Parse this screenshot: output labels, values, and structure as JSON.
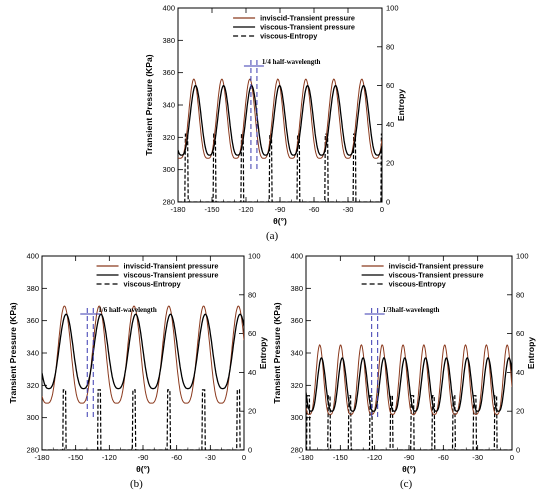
{
  "chart_data": [
    {
      "type": "line",
      "panel_label": "(a)",
      "xlabel": "θ(°)",
      "ylabel_left": "Transient Pressure (KPa)",
      "ylabel_right": "Entropy",
      "xlim": [
        -180,
        0
      ],
      "ylim_left": [
        280,
        400
      ],
      "ylim_right": [
        0,
        100
      ],
      "xticks": [
        -180,
        -150,
        -120,
        -90,
        -60,
        -30,
        0
      ],
      "xticklabels": [
        "-180",
        "-150",
        "-120",
        "-90",
        "-60",
        "-30",
        "0"
      ],
      "yticks_left": [
        280,
        300,
        320,
        340,
        360,
        380,
        400
      ],
      "yticklabels_left": [
        "280",
        "300",
        "320",
        "340",
        "360",
        "380",
        "400"
      ],
      "yticks_right": [
        0,
        20,
        40,
        60,
        80,
        100
      ],
      "yticklabels_right": [
        "0",
        "20",
        "40",
        "60",
        "80",
        "100"
      ],
      "legend": [
        "inviscid-Transient pressure",
        "viscous-Transient pressure",
        "viscous-Entropy"
      ],
      "annotation": "1/4 half-wavelength",
      "annotation_x": -113,
      "series": [
        {
          "name": "inviscid-Transient pressure",
          "color": "#8b3a1e",
          "style": "solid",
          "x": [],
          "y": []
        },
        {
          "name": "viscous-Transient pressure",
          "color": "#000000",
          "style": "solid",
          "x": [],
          "y": []
        },
        {
          "name": "viscous-Entropy",
          "color": "#000000",
          "style": "dashed",
          "x": [],
          "y": []
        }
      ]
    },
    {
      "type": "line",
      "panel_label": "(b)",
      "xlabel": "θ(°)",
      "ylabel_left": "Transient Pressure (KPa)",
      "ylabel_right": "Entropy",
      "xlim": [
        -180,
        0
      ],
      "ylim_left": [
        280,
        400
      ],
      "ylim_right": [
        0,
        100
      ],
      "xticks": [
        -180,
        -150,
        -120,
        -90,
        -60,
        -30,
        0
      ],
      "xticklabels": [
        "-180",
        "-150",
        "-120",
        "-90",
        "-60",
        "-30",
        "0"
      ],
      "yticks_left": [
        280,
        300,
        320,
        340,
        360,
        380,
        400
      ],
      "yticklabels_left": [
        "280",
        "300",
        "320",
        "340",
        "360",
        "380",
        "400"
      ],
      "yticks_right": [
        0,
        20,
        40,
        60,
        80,
        100
      ],
      "yticklabels_right": [
        "0",
        "20",
        "40",
        "60",
        "80",
        "100"
      ],
      "legend": [
        "inviscid-Transient pressure",
        "viscous-Transient pressure",
        "viscous-Entropy"
      ],
      "annotation": "1/6 half-wavelength",
      "annotation_x": -137,
      "series": [
        {
          "name": "inviscid-Transient pressure",
          "color": "#8b3a1e",
          "style": "solid",
          "x": [],
          "y": []
        },
        {
          "name": "viscous-Transient pressure",
          "color": "#000000",
          "style": "solid",
          "x": [],
          "y": []
        },
        {
          "name": "viscous-Entropy",
          "color": "#000000",
          "style": "dashed",
          "x": [],
          "y": []
        }
      ]
    },
    {
      "type": "line",
      "panel_label": "(c)",
      "xlabel": "θ(°)",
      "ylabel_left": "Transient Pressure (KPa)",
      "ylabel_right": "Entropy",
      "xlim": [
        -180,
        0
      ],
      "ylim_left": [
        280,
        400
      ],
      "ylim_right": [
        0,
        100
      ],
      "xticks": [
        -180,
        -150,
        -120,
        -90,
        -60,
        -30,
        0
      ],
      "xticklabels": [
        "-180",
        "-150",
        "-120",
        "-90",
        "-60",
        "-30",
        "0"
      ],
      "yticks_left": [
        280,
        300,
        320,
        340,
        360,
        380,
        400
      ],
      "yticklabels_left": [
        "280",
        "300",
        "320",
        "340",
        "360",
        "380",
        "400"
      ],
      "yticks_right": [
        0,
        20,
        40,
        60,
        80,
        100
      ],
      "yticklabels_right": [
        "0",
        "20",
        "40",
        "60",
        "80",
        "100"
      ],
      "legend": [
        "inviscid-Transient pressure",
        "viscous-Transient pressure",
        "viscous-Entropy"
      ],
      "annotation": "1/3half-wavelength",
      "annotation_x": -120,
      "series": [
        {
          "name": "inviscid-Transient pressure",
          "color": "#8b3a1e",
          "style": "solid",
          "x": [],
          "y": []
        },
        {
          "name": "viscous-Transient pressure",
          "color": "#000000",
          "style": "solid",
          "x": [],
          "y": []
        },
        {
          "name": "viscous-Entropy",
          "color": "#000000",
          "style": "dashed",
          "x": [],
          "y": []
        }
      ]
    }
  ]
}
